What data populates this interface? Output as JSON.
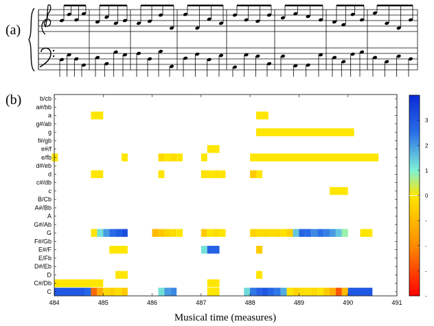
{
  "figure": {
    "panel_a_label": "(a)",
    "panel_b_label": "(b)"
  },
  "score_image": {
    "icon": "music-score-image",
    "description_hidden": true
  },
  "chart_data": {
    "type": "heatmap",
    "title": "",
    "xlabel": "Musical time (measures)",
    "ylabel": "",
    "xlim": [
      484,
      491
    ],
    "x_ticks": [
      484,
      485,
      486,
      487,
      488,
      489,
      490,
      491
    ],
    "y_categories": [
      "C",
      "C#/Db",
      "D",
      "D#/Eb",
      "E/Fb",
      "E#/F",
      "F#/Gb",
      "G",
      "G#/Ab",
      "A",
      "A#/Bb",
      "B/Cb",
      "c",
      "c#/db",
      "d",
      "d#/eb",
      "e/fb",
      "e#/f",
      "f#/gb",
      "g",
      "g#/ab",
      "a",
      "a#/bb",
      "b/cb"
    ],
    "colorbar": {
      "ticks": [
        3,
        2,
        1,
        0
      ],
      "neg_ticks": [
        "-",
        "-",
        "-",
        "-"
      ],
      "range": [
        -4,
        4
      ],
      "colormap": [
        "#ff0000",
        "#ff8c00",
        "#ffe600",
        "#7ff2d6",
        "#2a6fe8",
        "#0a2ad6"
      ]
    },
    "step": 0.125,
    "cells": [
      {
        "row": "C",
        "x": 484.0,
        "n": 5,
        "v": 3.0
      },
      {
        "row": "C",
        "x": 484.625,
        "n": 1,
        "v": 2.7
      },
      {
        "row": "C",
        "x": 484.75,
        "n": 1,
        "v": -2.5
      },
      {
        "row": "C",
        "x": 484.875,
        "n": 1,
        "v": -1.3
      },
      {
        "row": "C",
        "x": 485.0,
        "n": 1,
        "v": -0.3
      },
      {
        "row": "C",
        "x": 485.125,
        "n": 1,
        "v": -0.5
      },
      {
        "row": "C",
        "x": 485.25,
        "n": 1,
        "v": -0.2
      },
      {
        "row": "C",
        "x": 485.375,
        "n": 1,
        "v": -0.6
      },
      {
        "row": "C",
        "x": 486.125,
        "n": 1,
        "v": 1.2
      },
      {
        "row": "C",
        "x": 486.25,
        "n": 1,
        "v": 2.0
      },
      {
        "row": "C",
        "x": 486.375,
        "n": 1,
        "v": 2.2
      },
      {
        "row": "C",
        "x": 487.125,
        "n": 2,
        "v": 0.0
      },
      {
        "row": "C",
        "x": 487.875,
        "n": 1,
        "v": 1.3
      },
      {
        "row": "C",
        "x": 488.0,
        "n": 1,
        "v": 2.4
      },
      {
        "row": "C",
        "x": 488.125,
        "n": 1,
        "v": 2.8
      },
      {
        "row": "C",
        "x": 488.25,
        "n": 1,
        "v": 3.0
      },
      {
        "row": "C",
        "x": 488.375,
        "n": 1,
        "v": 2.7
      },
      {
        "row": "C",
        "x": 488.5,
        "n": 1,
        "v": 2.4
      },
      {
        "row": "C",
        "x": 488.625,
        "n": 1,
        "v": 1.8
      },
      {
        "row": "C",
        "x": 488.75,
        "n": 1,
        "v": 0.0
      },
      {
        "row": "C",
        "x": 488.875,
        "n": 1,
        "v": -0.4
      },
      {
        "row": "C",
        "x": 489.0,
        "n": 1,
        "v": -0.2
      },
      {
        "row": "C",
        "x": 489.125,
        "n": 1,
        "v": -0.1
      },
      {
        "row": "C",
        "x": 489.25,
        "n": 1,
        "v": -0.3
      },
      {
        "row": "C",
        "x": 489.375,
        "n": 1,
        "v": 0.0
      },
      {
        "row": "C",
        "x": 489.5,
        "n": 1,
        "v": -0.6
      },
      {
        "row": "C",
        "x": 489.625,
        "n": 1,
        "v": -1.2
      },
      {
        "row": "C",
        "x": 489.75,
        "n": 1,
        "v": -2.8
      },
      {
        "row": "C",
        "x": 489.875,
        "n": 1,
        "v": -1.0
      },
      {
        "row": "C",
        "x": 490.0,
        "n": 4,
        "v": 3.0
      },
      {
        "row": "C#/Db",
        "x": 484.0,
        "n": 8,
        "v": 0.0
      },
      {
        "row": "C#/Db",
        "x": 487.125,
        "n": 2,
        "v": 0.0
      },
      {
        "row": "D",
        "x": 485.25,
        "n": 2,
        "v": 0.0
      },
      {
        "row": "D",
        "x": 488.125,
        "n": 1,
        "v": 0.0
      },
      {
        "row": "E#/F",
        "x": 485.125,
        "n": 3,
        "v": 0.0
      },
      {
        "row": "E#/F",
        "x": 487.0,
        "n": 1,
        "v": 1.2
      },
      {
        "row": "E#/F",
        "x": 487.125,
        "n": 2,
        "v": 2.8
      },
      {
        "row": "E#/F",
        "x": 488.125,
        "n": 1,
        "v": -0.6
      },
      {
        "row": "G",
        "x": 484.75,
        "n": 1,
        "v": 0.0
      },
      {
        "row": "G",
        "x": 484.875,
        "n": 1,
        "v": 1.2
      },
      {
        "row": "G",
        "x": 485.0,
        "n": 1,
        "v": 2.0
      },
      {
        "row": "G",
        "x": 485.125,
        "n": 1,
        "v": 2.6
      },
      {
        "row": "G",
        "x": 485.25,
        "n": 1,
        "v": 2.9
      },
      {
        "row": "G",
        "x": 485.375,
        "n": 1,
        "v": 3.2
      },
      {
        "row": "G",
        "x": 486.0,
        "n": 1,
        "v": -1.0
      },
      {
        "row": "G",
        "x": 486.125,
        "n": 1,
        "v": -0.7
      },
      {
        "row": "G",
        "x": 486.25,
        "n": 1,
        "v": -0.4
      },
      {
        "row": "G",
        "x": 486.375,
        "n": 1,
        "v": -0.2
      },
      {
        "row": "G",
        "x": 486.5,
        "n": 1,
        "v": 0.0
      },
      {
        "row": "G",
        "x": 487.0,
        "n": 1,
        "v": -0.6
      },
      {
        "row": "G",
        "x": 487.125,
        "n": 1,
        "v": 0.0
      },
      {
        "row": "G",
        "x": 487.25,
        "n": 1,
        "v": -0.2
      },
      {
        "row": "G",
        "x": 487.375,
        "n": 1,
        "v": 0.0
      },
      {
        "row": "G",
        "x": 488.0,
        "n": 1,
        "v": -0.4
      },
      {
        "row": "G",
        "x": 488.125,
        "n": 1,
        "v": -0.2
      },
      {
        "row": "G",
        "x": 488.25,
        "n": 1,
        "v": -0.3
      },
      {
        "row": "G",
        "x": 488.375,
        "n": 1,
        "v": -0.2
      },
      {
        "row": "G",
        "x": 488.5,
        "n": 1,
        "v": -0.3
      },
      {
        "row": "G",
        "x": 488.625,
        "n": 1,
        "v": -0.1
      },
      {
        "row": "G",
        "x": 488.75,
        "n": 1,
        "v": -0.5
      },
      {
        "row": "G",
        "x": 488.875,
        "n": 1,
        "v": 1.5
      },
      {
        "row": "G",
        "x": 489.0,
        "n": 1,
        "v": 2.7
      },
      {
        "row": "G",
        "x": 489.125,
        "n": 1,
        "v": 2.6
      },
      {
        "row": "G",
        "x": 489.25,
        "n": 1,
        "v": 2.2
      },
      {
        "row": "G",
        "x": 489.375,
        "n": 1,
        "v": 2.5
      },
      {
        "row": "G",
        "x": 489.5,
        "n": 1,
        "v": 2.3
      },
      {
        "row": "G",
        "x": 489.625,
        "n": 1,
        "v": 2.0
      },
      {
        "row": "G",
        "x": 489.75,
        "n": 1,
        "v": 1.5
      },
      {
        "row": "G",
        "x": 489.875,
        "n": 1,
        "v": 0.8
      },
      {
        "row": "G",
        "x": 490.25,
        "n": 2,
        "v": 0.0
      },
      {
        "row": "c",
        "x": 489.625,
        "n": 3,
        "v": 0.0
      },
      {
        "row": "d",
        "x": 484.75,
        "n": 2,
        "v": 0.0
      },
      {
        "row": "d",
        "x": 486.125,
        "n": 1,
        "v": 0.0
      },
      {
        "row": "d",
        "x": 487.0,
        "n": 1,
        "v": -0.1
      },
      {
        "row": "d",
        "x": 487.125,
        "n": 1,
        "v": 0.0
      },
      {
        "row": "d",
        "x": 487.25,
        "n": 1,
        "v": -0.1
      },
      {
        "row": "d",
        "x": 487.375,
        "n": 1,
        "v": 0.0
      },
      {
        "row": "d",
        "x": 488.0,
        "n": 1,
        "v": -0.6
      },
      {
        "row": "d",
        "x": 488.125,
        "n": 1,
        "v": 0.0
      },
      {
        "row": "e/fb",
        "x": 483.95,
        "n": 1,
        "v": 0.0
      },
      {
        "row": "e/fb",
        "x": 485.375,
        "n": 1,
        "v": 0.0
      },
      {
        "row": "e/fb",
        "x": 486.125,
        "n": 1,
        "v": -0.3
      },
      {
        "row": "e/fb",
        "x": 486.25,
        "n": 1,
        "v": 0.0
      },
      {
        "row": "e/fb",
        "x": 486.375,
        "n": 1,
        "v": -0.2
      },
      {
        "row": "e/fb",
        "x": 486.5,
        "n": 1,
        "v": 0.0
      },
      {
        "row": "e/fb",
        "x": 487.0,
        "n": 1,
        "v": 0.0
      },
      {
        "row": "e/fb",
        "x": 488.0,
        "n": 21,
        "v": 0.0
      },
      {
        "row": "e#/f",
        "x": 487.125,
        "n": 2,
        "v": 0.0
      },
      {
        "row": "g",
        "x": 488.125,
        "n": 16,
        "v": 0.0
      },
      {
        "row": "a",
        "x": 484.75,
        "n": 2,
        "v": 0.0
      },
      {
        "row": "a",
        "x": 488.125,
        "n": 2,
        "v": 0.0
      }
    ]
  }
}
